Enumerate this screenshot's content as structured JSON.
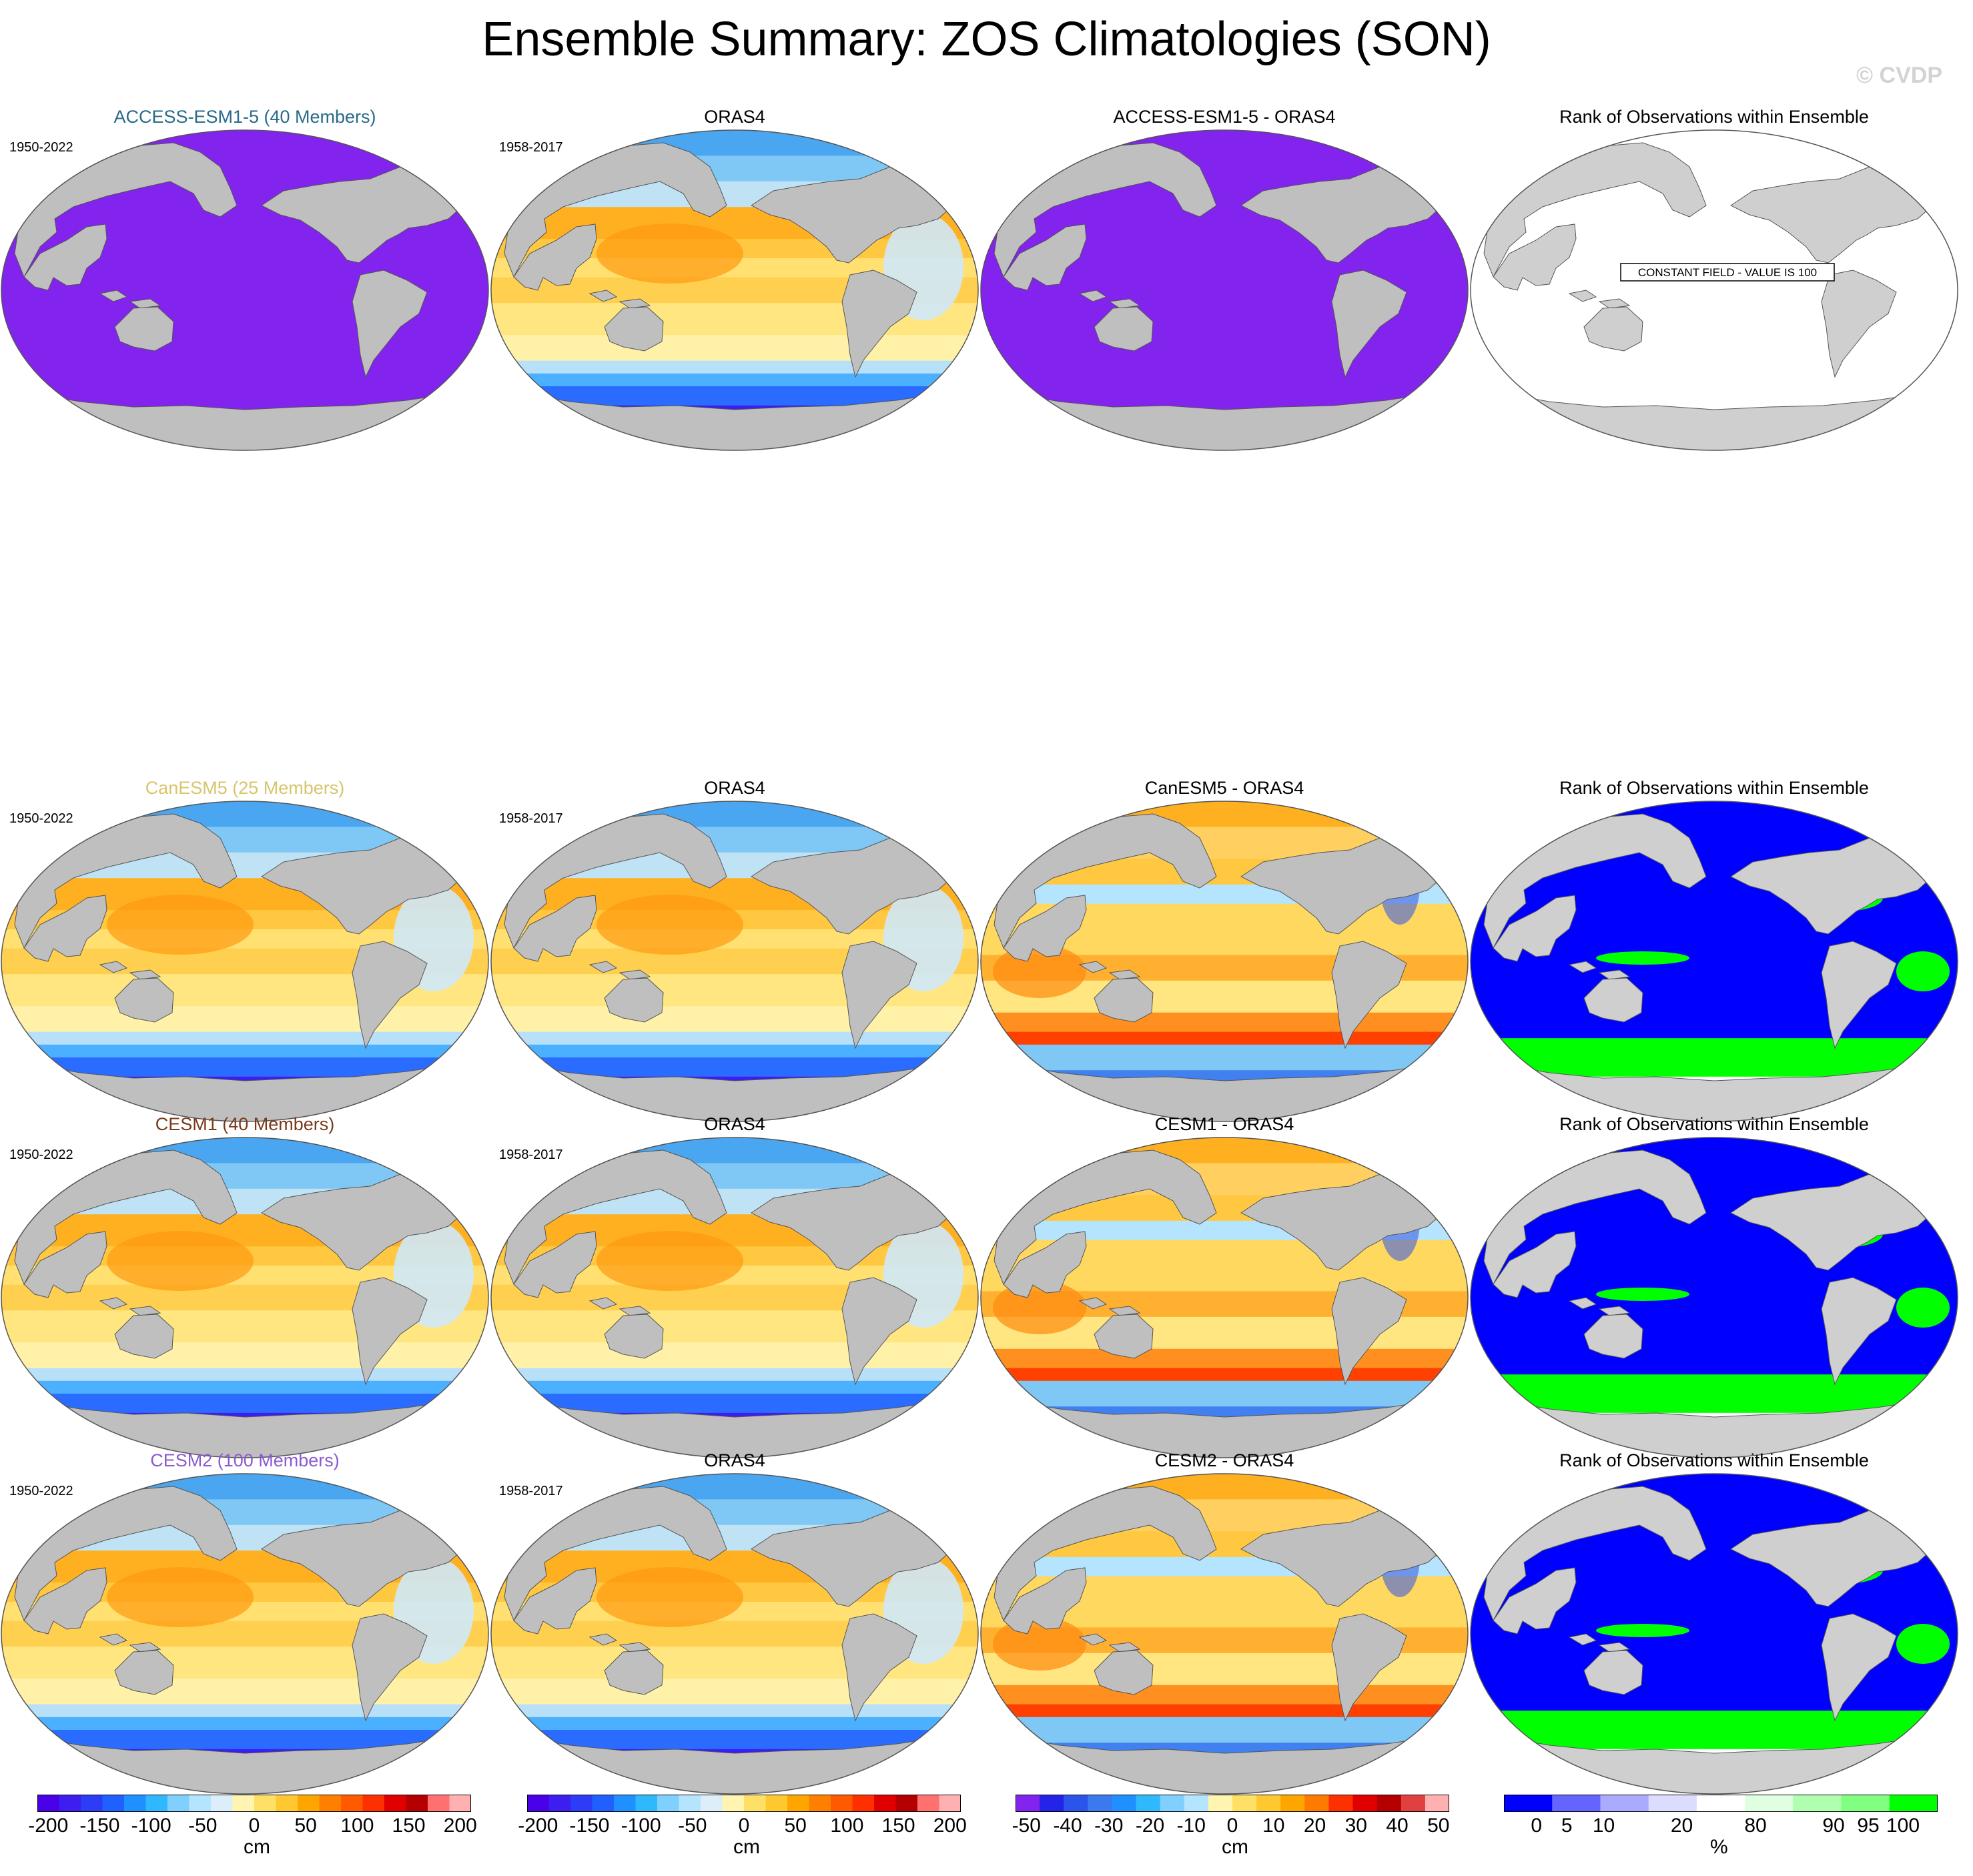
{
  "title": "Ensemble Summary: ZOS Climatologies (SON)",
  "watermark": "© CVDP",
  "colors": {
    "land": "#bfbfbf",
    "purple_field": "#8323ee",
    "rank_low": "#0000ff",
    "rank_high": "#00ff00"
  },
  "rows": [
    {
      "panels": [
        {
          "title": "ACCESS-ESM1-5 (40 Members)",
          "title_color": "#2a6a8a",
          "years": "1950-2022",
          "kind": "constant_purple"
        },
        {
          "title": "ORAS4",
          "title_color": "#000000",
          "years": "1958-2017",
          "kind": "field"
        },
        {
          "title": "ACCESS-ESM1-5 - ORAS4",
          "title_color": "#000000",
          "years": "",
          "kind": "constant_purple"
        },
        {
          "title": "Rank of Observations within Ensemble",
          "title_color": "#000000",
          "years": "",
          "kind": "constant_white",
          "note": "CONSTANT FIELD - VALUE IS 100"
        }
      ]
    },
    {
      "panels": [
        {
          "title": "CanESM5 (25 Members)",
          "title_color": "#d8c46a",
          "years": "1950-2022",
          "kind": "field"
        },
        {
          "title": "ORAS4",
          "title_color": "#000000",
          "years": "1958-2017",
          "kind": "field"
        },
        {
          "title": "CanESM5 - ORAS4",
          "title_color": "#000000",
          "years": "",
          "kind": "diff"
        },
        {
          "title": "Rank of Observations within Ensemble",
          "title_color": "#000000",
          "years": "",
          "kind": "rank"
        }
      ]
    },
    {
      "panels": [
        {
          "title": "CESM1 (40 Members)",
          "title_color": "#7a3a1a",
          "years": "1950-2022",
          "kind": "field"
        },
        {
          "title": "ORAS4",
          "title_color": "#000000",
          "years": "1958-2017",
          "kind": "field"
        },
        {
          "title": "CESM1 - ORAS4",
          "title_color": "#000000",
          "years": "",
          "kind": "diff"
        },
        {
          "title": "Rank of Observations within Ensemble",
          "title_color": "#000000",
          "years": "",
          "kind": "rank"
        }
      ]
    },
    {
      "panels": [
        {
          "title": "CESM2 (100 Members)",
          "title_color": "#8a5ad0",
          "years": "1950-2022",
          "kind": "field"
        },
        {
          "title": "ORAS4",
          "title_color": "#000000",
          "years": "1958-2017",
          "kind": "field"
        },
        {
          "title": "CESM2 - ORAS4",
          "title_color": "#000000",
          "years": "",
          "kind": "diff"
        },
        {
          "title": "Rank of Observations within Ensemble",
          "title_color": "#000000",
          "years": "",
          "kind": "rank"
        }
      ]
    }
  ],
  "chart_data": {
    "type": "heatmap",
    "colorbars": [
      {
        "unit": "cm",
        "ticks": [
          "-200",
          "-150",
          "-100",
          "-50",
          "0",
          "50",
          "100",
          "150",
          "200"
        ],
        "range": [
          -200,
          200
        ],
        "colors": [
          "#4a00e8",
          "#3c1ef0",
          "#2d3cf5",
          "#2060ff",
          "#1e90ff",
          "#30b8ff",
          "#7fd0ff",
          "#b5e4ff",
          "#dceefa",
          "#fff4b0",
          "#ffe066",
          "#ffc830",
          "#ffa500",
          "#ff8000",
          "#ff5a00",
          "#ff3000",
          "#e00000",
          "#b40000",
          "#ff7070",
          "#ffb0b0"
        ]
      },
      {
        "unit": "cm",
        "ticks": [
          "-200",
          "-150",
          "-100",
          "-50",
          "0",
          "50",
          "100",
          "150",
          "200"
        ],
        "range": [
          -200,
          200
        ],
        "colors": [
          "#4a00e8",
          "#3c1ef0",
          "#2d3cf5",
          "#2060ff",
          "#1e90ff",
          "#30b8ff",
          "#7fd0ff",
          "#b5e4ff",
          "#dceefa",
          "#fff4b0",
          "#ffe066",
          "#ffc830",
          "#ffa500",
          "#ff8000",
          "#ff5a00",
          "#ff3000",
          "#e00000",
          "#b40000",
          "#ff7070",
          "#ffb0b0"
        ]
      },
      {
        "unit": "cm",
        "ticks": [
          "-50",
          "-40",
          "-30",
          "-20",
          "-10",
          "0",
          "10",
          "20",
          "30",
          "40",
          "50"
        ],
        "range": [
          -55,
          55
        ],
        "colors": [
          "#8323ee",
          "#2424e8",
          "#2a55e8",
          "#3a7aee",
          "#1e90ff",
          "#30b8ff",
          "#7fd0ff",
          "#b5e4ff",
          "#fff4b0",
          "#ffe066",
          "#ffc830",
          "#ffa500",
          "#ff7a00",
          "#ff3000",
          "#e00000",
          "#b40000",
          "#e04040",
          "#ffb0b0"
        ]
      },
      {
        "unit": "%",
        "ticks": [
          "0",
          "5",
          "10",
          "20",
          "80",
          "90",
          "95",
          "100"
        ],
        "tick_positions": [
          0.075,
          0.145,
          0.23,
          0.41,
          0.58,
          0.76,
          0.84,
          0.92
        ],
        "colors": [
          "#0000ff",
          "#6464ff",
          "#aaaaff",
          "#dcdcff",
          "#ffffff",
          "#e0ffe0",
          "#b0ffb0",
          "#80ff80",
          "#00ff00"
        ]
      }
    ]
  }
}
